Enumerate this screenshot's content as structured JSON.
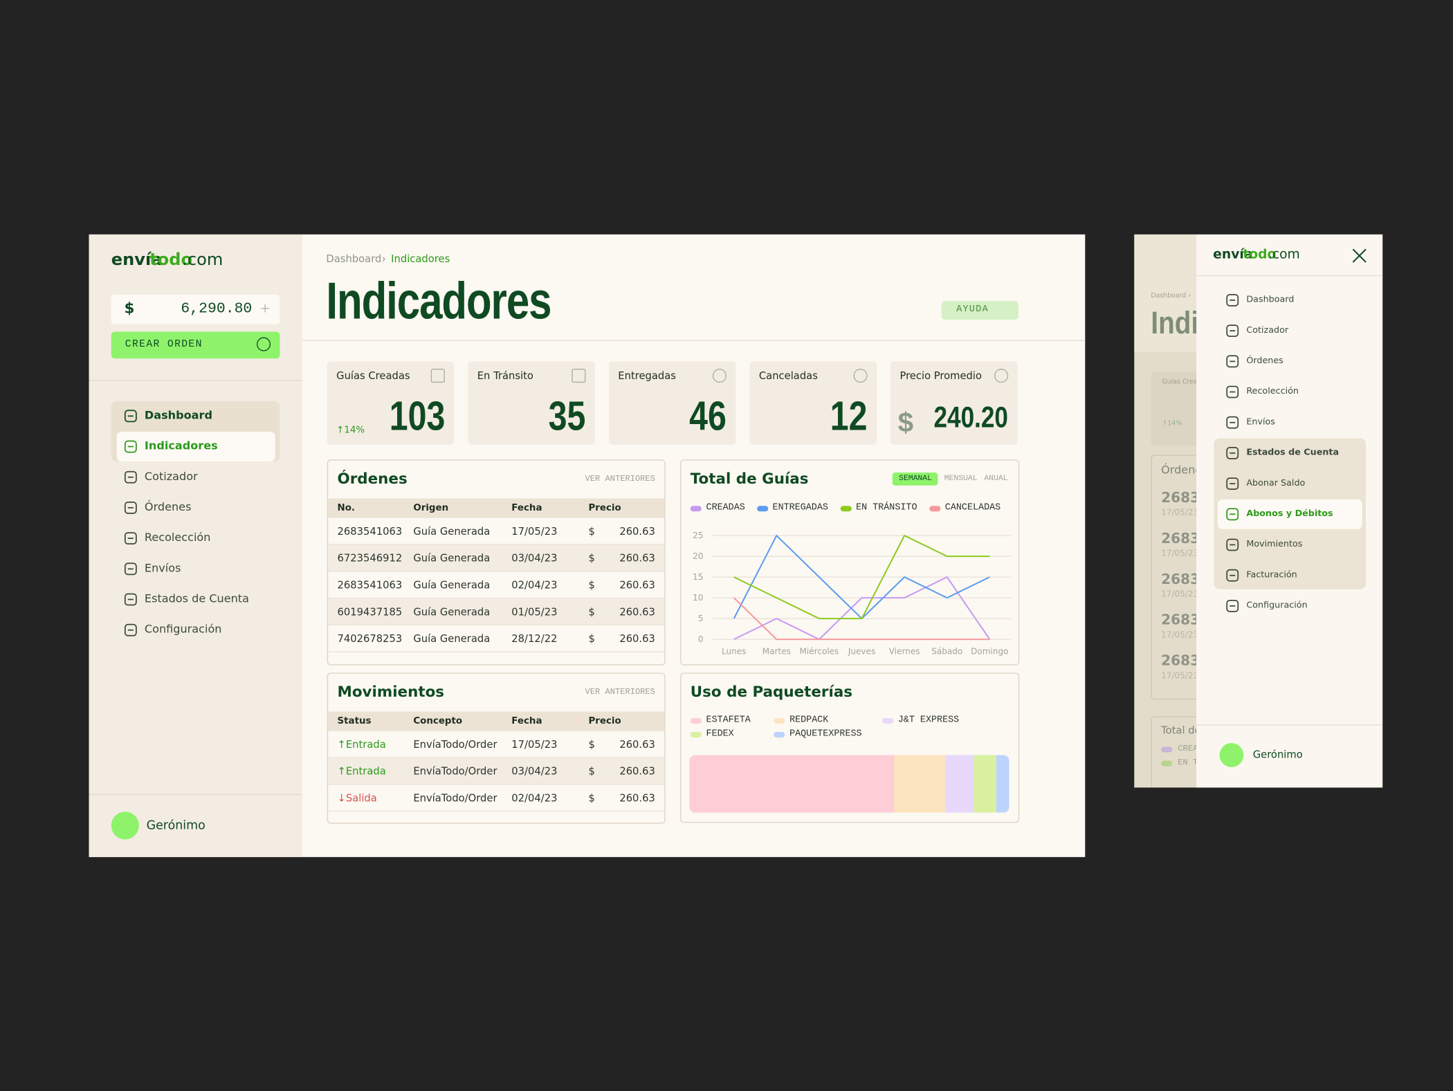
{
  "logo": {
    "part1": "envía",
    "part2": "todo",
    "part3": ".com"
  },
  "sidebar": {
    "balance_symbol": "$",
    "balance": "6,290.80",
    "balance_add": "+",
    "create_button": "CREAR ORDEN",
    "nav": [
      "Dashboard",
      "Indicadores",
      "Cotizador",
      "Órdenes",
      "Recolección",
      "Envíos",
      "Estados de Cuenta",
      "Configuración"
    ],
    "user": "Gerónimo"
  },
  "header": {
    "breadcrumb": [
      "Dashboard",
      "›",
      "Indicadores"
    ],
    "title": "Indicadores",
    "help_button": "AYUDA"
  },
  "stats": [
    {
      "label": "Guías Creadas",
      "value": "103",
      "change": "↑14%"
    },
    {
      "label": "En Tránsito",
      "value": "35"
    },
    {
      "label": "Entregadas",
      "value": "46"
    },
    {
      "label": "Canceladas",
      "value": "12"
    },
    {
      "label": "Precio Promedio",
      "currency": "$",
      "value": "240.20"
    }
  ],
  "orders": {
    "title": "Órdenes",
    "link": "VER ANTERIORES",
    "columns": [
      "No.",
      "Origen",
      "Fecha",
      "Precio"
    ],
    "rows": [
      [
        "2683541063",
        "Guía Generada",
        "17/05/23",
        "$",
        "260.63"
      ],
      [
        "6723546912",
        "Guía Generada",
        "03/04/23",
        "$",
        "260.63"
      ],
      [
        "2683541063",
        "Guía Generada",
        "02/04/23",
        "$",
        "260.63"
      ],
      [
        "6019437185",
        "Guía Generada",
        "01/05/23",
        "$",
        "260.63"
      ],
      [
        "7402678253",
        "Guía Generada",
        "28/12/22",
        "$",
        "260.63"
      ]
    ]
  },
  "movements": {
    "title": "Movimientos",
    "link": "VER ANTERIORES",
    "columns": [
      "Status",
      "Concepto",
      "Fecha",
      "Precio"
    ],
    "rows": [
      [
        "↑Entrada",
        "EnvíaTodo/Order",
        "17/05/23",
        "$",
        "260.63"
      ],
      [
        "↑Entrada",
        "EnvíaTodo/Order",
        "03/04/23",
        "$",
        "260.63"
      ],
      [
        "↓Salida",
        "EnvíaTodo/Order",
        "02/04/23",
        "$",
        "260.63"
      ]
    ]
  },
  "chart_data": [
    {
      "type": "line",
      "title": "Total de Guías",
      "tabs": [
        "SEMANAL",
        "MENSUAL",
        "ANUAL"
      ],
      "categories": [
        "Lunes",
        "Martes",
        "Miércoles",
        "Jueves",
        "Viernes",
        "Sábado",
        "Domingo"
      ],
      "series": [
        {
          "name": "CREADAS",
          "color": "#c59af2",
          "values": [
            0,
            5,
            0,
            10,
            10,
            15,
            0
          ]
        },
        {
          "name": "ENTREGADAS",
          "color": "#5b9cf0",
          "values": [
            5,
            25,
            15,
            5,
            15,
            10,
            15
          ]
        },
        {
          "name": "EN TRÁNSITO",
          "color": "#8ccb1c",
          "values": [
            15,
            10,
            5,
            5,
            25,
            20,
            20
          ]
        },
        {
          "name": "CANCELADAS",
          "color": "#f59a9a",
          "values": [
            10,
            0,
            0,
            0,
            0,
            0,
            0
          ]
        }
      ],
      "ylim": [
        0,
        25
      ],
      "yticks": [
        0,
        5,
        10,
        15,
        20,
        25
      ],
      "grid": true
    },
    {
      "type": "stacked-bar",
      "title": "Uso de Paqueterías",
      "series": [
        {
          "name": "ESTAFETA",
          "color": "#fecdd6",
          "values": [
            64
          ]
        },
        {
          "name": "REDPACK",
          "color": "#fde4c0",
          "values": [
            16
          ]
        },
        {
          "name": "J&T EXPRESS",
          "color": "#e8d8fb",
          "values": [
            9
          ]
        },
        {
          "name": "FEDEX",
          "color": "#d8f0a0",
          "values": [
            7
          ]
        },
        {
          "name": "PAQUETEXPRESS",
          "color": "#bed3fb",
          "values": [
            4
          ]
        }
      ],
      "xlim": [
        0,
        100
      ]
    }
  ],
  "mobile": {
    "background": {
      "breadcrumb": "Dashboard ›",
      "title": "Indi",
      "card": "Guías Crea",
      "change": "↑14%",
      "panel": "Órdene",
      "rows": [
        "2683",
        "2683",
        "2683",
        "2683",
        "2683"
      ],
      "dates": [
        "17/05/23",
        "17/05/23",
        "17/05/23",
        "17/05/23",
        "17/05/23"
      ],
      "panel2": "Total de",
      "legend": [
        "CREA",
        "EN T"
      ]
    },
    "nav": [
      "Dashboard",
      "Cotizador",
      "Órdenes",
      "Recolección",
      "Envíos",
      "Estados de Cuenta",
      "Abonar Saldo",
      "Abonos y Débitos",
      "Movimientos",
      "Facturación",
      "Configuración"
    ],
    "user": "Gerónimo"
  }
}
